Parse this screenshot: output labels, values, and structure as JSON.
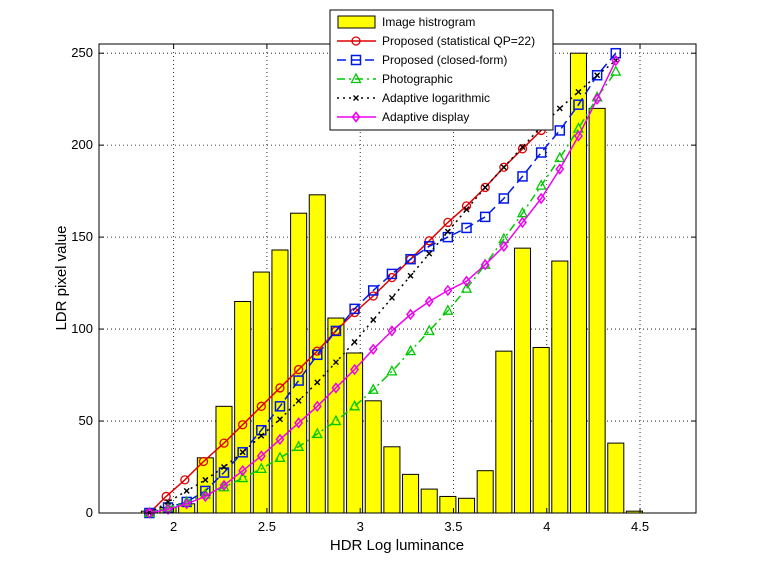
{
  "chart_data": {
    "type": "bar+line",
    "xlabel": "HDR Log luminance",
    "ylabel": "LDR pixel value",
    "xlim": [
      1.6,
      4.8
    ],
    "ylim": [
      0,
      255
    ],
    "grid": true,
    "legend_position": "top-center",
    "xticks": [
      2,
      2.5,
      3,
      3.5,
      4,
      4.5
    ],
    "xtick_labels": [
      "2",
      "2.5",
      "3",
      "3.5",
      "4",
      "4.5"
    ],
    "yticks": [
      0,
      50,
      100,
      150,
      200,
      250
    ],
    "ytick_labels": [
      "0",
      "50",
      "100",
      "150",
      "200",
      "250"
    ],
    "histogram": {
      "name": "Image histrogram",
      "color": "#ffff00",
      "bin_width": 0.1,
      "x": [
        1.87,
        1.97,
        2.07,
        2.17,
        2.27,
        2.37,
        2.47,
        2.57,
        2.67,
        2.77,
        2.87,
        2.97,
        3.07,
        3.17,
        3.27,
        3.37,
        3.47,
        3.57,
        3.67,
        3.77,
        3.87,
        3.97,
        4.07,
        4.17,
        4.27,
        4.37,
        4.47
      ],
      "values": [
        1,
        3,
        5,
        30,
        58,
        115,
        131,
        143,
        163,
        173,
        106,
        87,
        61,
        36,
        21,
        13,
        9,
        8,
        23,
        88,
        144,
        90,
        137,
        250,
        220,
        38,
        1
      ]
    },
    "series": [
      {
        "name": "Proposed (statistical QP=22)",
        "color": "#e00000",
        "marker": "circle",
        "dash": "",
        "x": [
          1.87,
          1.96,
          2.06,
          2.16,
          2.27,
          2.37,
          2.47,
          2.57,
          2.67,
          2.77,
          2.87,
          2.97,
          3.07,
          3.17,
          3.27,
          3.37,
          3.47,
          3.57,
          3.67,
          3.77,
          3.87,
          3.97
        ],
        "y": [
          0,
          9,
          18,
          28,
          38,
          48,
          58,
          68,
          78,
          88,
          99,
          109,
          118,
          128,
          138,
          148,
          158,
          167,
          177,
          188,
          198,
          208
        ]
      },
      {
        "name": "Proposed (closed-form)",
        "color": "#0018e8",
        "marker": "square",
        "dash": "9,5",
        "x": [
          1.87,
          1.97,
          2.07,
          2.17,
          2.27,
          2.37,
          2.47,
          2.57,
          2.67,
          2.77,
          2.87,
          2.97,
          3.07,
          3.17,
          3.27,
          3.37,
          3.47,
          3.57,
          3.67,
          3.77,
          3.87,
          3.97,
          4.07,
          4.17,
          4.27,
          4.37
        ],
        "y": [
          0,
          3,
          6,
          12,
          22,
          33,
          45,
          58,
          72,
          86,
          99,
          111,
          121,
          130,
          138,
          145,
          150,
          155,
          161,
          171,
          183,
          196,
          208,
          222,
          238,
          250
        ]
      },
      {
        "name": "Photographic",
        "color": "#00c800",
        "marker": "triangle",
        "dash": "8,4,2,4",
        "x": [
          1.87,
          1.97,
          2.07,
          2.17,
          2.27,
          2.37,
          2.47,
          2.57,
          2.67,
          2.77,
          2.87,
          2.97,
          3.07,
          3.17,
          3.27,
          3.37,
          3.47,
          3.57,
          3.67,
          3.77,
          3.87,
          3.97,
          4.07,
          4.17,
          4.27,
          4.37
        ],
        "y": [
          0,
          3,
          6,
          10,
          14,
          19,
          24,
          30,
          36,
          43,
          50,
          58,
          67,
          77,
          88,
          99,
          110,
          122,
          135,
          149,
          163,
          178,
          193,
          209,
          226,
          240
        ]
      },
      {
        "name": "Adaptive logarithmic",
        "color": "#000000",
        "marker": "x",
        "dash": "2,4",
        "x": [
          1.87,
          1.97,
          2.07,
          2.17,
          2.27,
          2.37,
          2.47,
          2.57,
          2.67,
          2.77,
          2.87,
          2.97,
          3.07,
          3.17,
          3.27,
          3.37,
          3.47,
          3.57,
          3.67,
          3.77,
          3.87,
          3.97,
          4.07,
          4.17,
          4.27,
          4.37
        ],
        "y": [
          0,
          6,
          12,
          18,
          25,
          33,
          42,
          51,
          61,
          71,
          82,
          93,
          105,
          117,
          129,
          141,
          153,
          165,
          177,
          188,
          199,
          210,
          220,
          229,
          238,
          246
        ]
      },
      {
        "name": "Adaptive display",
        "color": "#f000f0",
        "marker": "diamond",
        "dash": "",
        "x": [
          1.87,
          1.97,
          2.07,
          2.17,
          2.27,
          2.37,
          2.47,
          2.57,
          2.67,
          2.77,
          2.87,
          2.97,
          3.07,
          3.17,
          3.27,
          3.37,
          3.47,
          3.57,
          3.67,
          3.77,
          3.87,
          3.97,
          4.07,
          4.17,
          4.27,
          4.37
        ],
        "y": [
          0,
          2,
          5,
          9,
          15,
          23,
          31,
          40,
          49,
          58,
          68,
          78,
          89,
          99,
          108,
          115,
          121,
          126,
          135,
          145,
          158,
          171,
          187,
          205,
          225,
          246
        ]
      }
    ]
  }
}
